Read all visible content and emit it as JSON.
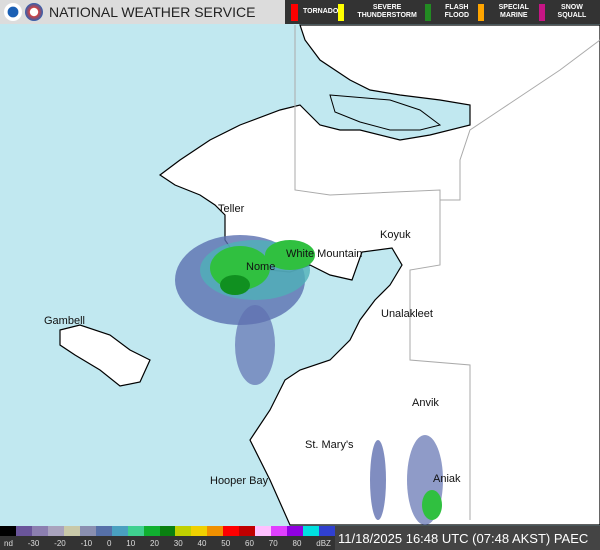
{
  "header": {
    "title": "NATIONAL WEATHER SERVICE",
    "logos": [
      "noaa-logo",
      "nws-logo"
    ]
  },
  "alerts": [
    {
      "label": "TORNADO",
      "color": "#ff0000"
    },
    {
      "label": "SEVERE THUNDERSTORM",
      "color": "#ffff00"
    },
    {
      "label": "FLASH FLOOD",
      "color": "#228b22"
    },
    {
      "label": "SPECIAL MARINE",
      "color": "#ffa500"
    },
    {
      "label": "SNOW SQUALL",
      "color": "#c71585"
    }
  ],
  "cities": [
    {
      "name": "Teller"
    },
    {
      "name": "Koyuk"
    },
    {
      "name": "White Mountain"
    },
    {
      "name": "Nome"
    },
    {
      "name": "Unalakleet"
    },
    {
      "name": "Gambell"
    },
    {
      "name": "Anvik"
    },
    {
      "name": "St. Mary's"
    },
    {
      "name": "Hooper Bay"
    },
    {
      "name": "Aniak"
    }
  ],
  "legend": {
    "ticks": [
      "nd",
      "-30",
      "-20",
      "-10",
      "0",
      "10",
      "20",
      "30",
      "40",
      "50",
      "60",
      "70",
      "80",
      "dBZ"
    ],
    "colors": [
      "#000000",
      "#6a559a",
      "#8c7fb0",
      "#a9a3bd",
      "#c9c9a9",
      "#8a8fb0",
      "#5670a8",
      "#4aa0c0",
      "#3fd090",
      "#10b030",
      "#0a8010",
      "#c0d000",
      "#f0d000",
      "#f09000",
      "#ff0000",
      "#c00000",
      "#ffc0ff",
      "#e040ff",
      "#9000e0",
      "#00e0e0",
      "#3040d0"
    ]
  },
  "footer": {
    "timestamp": "11/18/2025 16:48 UTC (07:48 AKST) PAEC"
  },
  "colors": {
    "water": "#c1e8f0",
    "land": "#ffffff"
  }
}
